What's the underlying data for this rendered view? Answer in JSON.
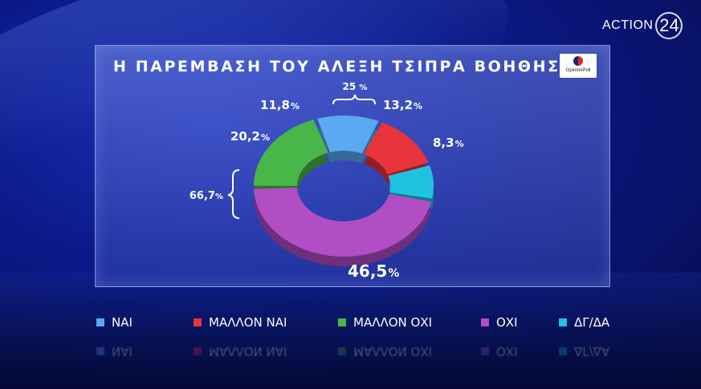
{
  "brand": {
    "action_text": "ACTION",
    "number_text": "24"
  },
  "logo": {
    "text": "OpinionPoll"
  },
  "chart_data": {
    "type": "pie",
    "variant": "donut",
    "title": "Η ΠΑΡΕΜΒΑΣΗ ΤΟΥ ΑΛΕΞΗ ΤΣΙΠΡΑ ΒΟΗΘΗΣΕ;",
    "unit": "%",
    "slices": [
      {
        "name": "ΝΑΙ",
        "value": 11.8,
        "label": "11,8",
        "color": "#5aa9f2"
      },
      {
        "name": "ΜΑΛΛΟΝ ΝΑΙ",
        "value": 13.2,
        "label": "13,2",
        "color": "#e8343a"
      },
      {
        "name": "ΔΓ/ΔΑ",
        "value": 8.3,
        "label": "8,3",
        "color": "#1fc2e0"
      },
      {
        "name": "ΟΧΙ",
        "value": 46.5,
        "label": "46,5",
        "color": "#b14ec4"
      },
      {
        "name": "ΜΑΛΛΟΝ ΟΧΙ",
        "value": 20.2,
        "label": "20,2",
        "color": "#49b649"
      }
    ],
    "groups": [
      {
        "label": "25",
        "members": [
          "ΝΑΙ",
          "ΜΑΛΛΟΝ ΝΑΙ"
        ]
      },
      {
        "label": "66,7",
        "members": [
          "ΜΑΛΛΟΝ ΟΧΙ",
          "ΟΧΙ"
        ]
      }
    ],
    "legend": {
      "placement": "bottom",
      "items": [
        {
          "label": "ΝΑΙ",
          "color": "#5aa9f2"
        },
        {
          "label": "ΜΑΛΛΟΝ ΝΑΙ",
          "color": "#e8343a"
        },
        {
          "label": "ΜΑΛΛΟΝ ΟΧΙ",
          "color": "#49b649"
        },
        {
          "label": "ΟΧΙ",
          "color": "#b14ec4"
        },
        {
          "label": "ΔΓ/ΔΑ",
          "color": "#1fc2e0"
        }
      ]
    }
  }
}
